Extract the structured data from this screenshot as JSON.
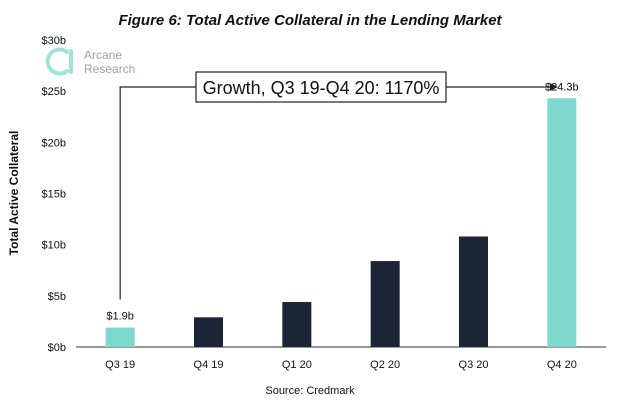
{
  "brand": {
    "line1": "Arcane",
    "line2": "Research",
    "logo_color": "#9fe3da"
  },
  "source": "Source: Credmark",
  "annotation": {
    "text": "Growth, Q3 19-Q4 20: 1170%",
    "from_category": "Q3 19",
    "to_category": "Q4 20"
  },
  "chart_data": {
    "type": "bar",
    "title": "Figure 6: Total Active Collateral in the Lending Market",
    "xlabel": "",
    "ylabel": "Total Active Collateral",
    "categories": [
      "Q3 19",
      "Q4 19",
      "Q1 20",
      "Q2 20",
      "Q3 20",
      "Q4 20"
    ],
    "values": [
      1.9,
      2.9,
      4.4,
      8.4,
      10.8,
      24.3
    ],
    "value_unit": "$ billions",
    "ylim": [
      0,
      30
    ],
    "yticks": [
      0,
      5,
      10,
      15,
      20,
      25,
      30
    ],
    "ytick_labels": [
      "$0b",
      "$5b",
      "$10b",
      "$15b",
      "$20b",
      "$25b",
      "$30b"
    ],
    "data_labels": [
      "$1.9b",
      "",
      "",
      "",
      "",
      "$24.3b"
    ],
    "bar_colors": [
      "#7fd8cd",
      "#1c2436",
      "#1c2436",
      "#1c2436",
      "#1c2436",
      "#7fd8cd"
    ],
    "grid": false,
    "legend": "none"
  }
}
